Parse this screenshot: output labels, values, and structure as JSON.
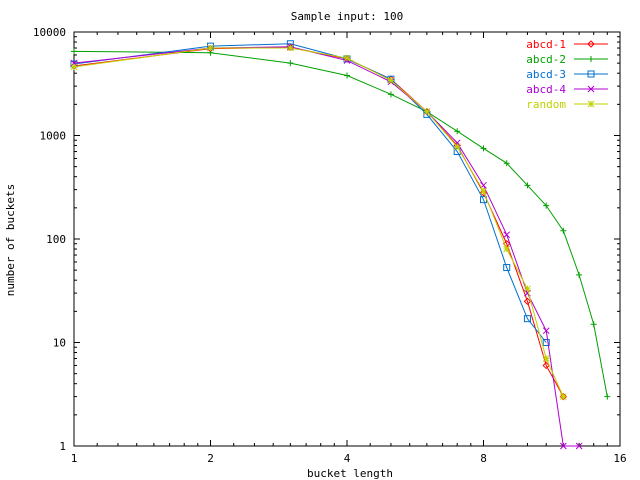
{
  "chart_data": {
    "type": "line",
    "title": "Sample input: 100",
    "xlabel": "bucket length",
    "ylabel": "number of buckets",
    "x_scale": "log2",
    "y_scale": "log10",
    "xlim": [
      1,
      16
    ],
    "ylim": [
      1,
      10000
    ],
    "x_ticks": [
      "1",
      "2",
      "4",
      "8",
      "16"
    ],
    "y_ticks": [
      "1",
      "10",
      "100",
      "1000",
      "10000"
    ],
    "legend_position": "top-right",
    "series": [
      {
        "name": "abcd-1",
        "color": "#ff0000",
        "marker": "diamond",
        "points": [
          [
            1,
            4700
          ],
          [
            2,
            6900
          ],
          [
            3,
            7100
          ],
          [
            4,
            5500
          ],
          [
            5,
            3500
          ],
          [
            6,
            1700
          ],
          [
            7,
            800
          ],
          [
            8,
            280
          ],
          [
            9,
            90
          ],
          [
            10,
            25
          ],
          [
            11,
            6
          ],
          [
            12,
            3
          ]
        ]
      },
      {
        "name": "abcd-2",
        "color": "#00a000",
        "marker": "plus",
        "points": [
          [
            1,
            6500
          ],
          [
            2,
            6300
          ],
          [
            3,
            5000
          ],
          [
            4,
            3800
          ],
          [
            5,
            2500
          ],
          [
            6,
            1700
          ],
          [
            7,
            1100
          ],
          [
            8,
            750
          ],
          [
            9,
            540
          ],
          [
            10,
            330
          ],
          [
            11,
            210
          ],
          [
            12,
            120
          ],
          [
            13,
            45
          ],
          [
            14,
            15
          ],
          [
            15,
            3
          ]
        ]
      },
      {
        "name": "abcd-3",
        "color": "#0070d0",
        "marker": "square",
        "points": [
          [
            1,
            4900
          ],
          [
            2,
            7300
          ],
          [
            3,
            7700
          ],
          [
            4,
            5500
          ],
          [
            5,
            3500
          ],
          [
            6,
            1600
          ],
          [
            7,
            700
          ],
          [
            8,
            240
          ],
          [
            9,
            53
          ],
          [
            10,
            17
          ],
          [
            11,
            10
          ]
        ]
      },
      {
        "name": "abcd-4",
        "color": "#b000d0",
        "marker": "cross",
        "points": [
          [
            1,
            5000
          ],
          [
            2,
            7000
          ],
          [
            3,
            7200
          ],
          [
            4,
            5300
          ],
          [
            5,
            3300
          ],
          [
            6,
            1700
          ],
          [
            7,
            850
          ],
          [
            8,
            330
          ],
          [
            9,
            110
          ],
          [
            10,
            30
          ],
          [
            11,
            13
          ],
          [
            12,
            1
          ],
          [
            13,
            1
          ]
        ]
      },
      {
        "name": "random",
        "color": "#c0d000",
        "marker": "star",
        "points": [
          [
            1,
            4600
          ],
          [
            2,
            7000
          ],
          [
            3,
            7000
          ],
          [
            4,
            5600
          ],
          [
            5,
            3400
          ],
          [
            6,
            1700
          ],
          [
            7,
            780
          ],
          [
            8,
            290
          ],
          [
            9,
            80
          ],
          [
            10,
            33
          ],
          [
            11,
            7
          ],
          [
            12,
            3
          ]
        ]
      }
    ]
  }
}
